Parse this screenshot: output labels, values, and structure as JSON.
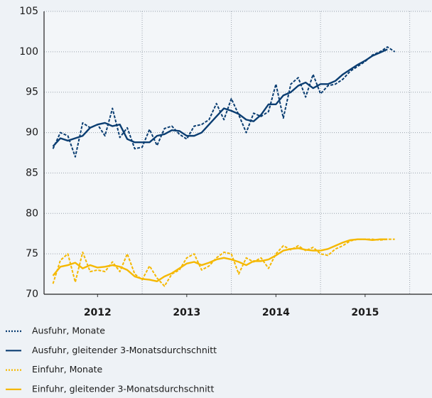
{
  "chart_data": {
    "type": "line",
    "x": [
      2012,
      2012.083,
      2012.167,
      2012.25,
      2012.333,
      2012.417,
      2012.5,
      2012.583,
      2012.667,
      2012.75,
      2012.833,
      2012.917,
      2013,
      2013.083,
      2013.167,
      2013.25,
      2013.333,
      2013.417,
      2013.5,
      2013.583,
      2013.667,
      2013.75,
      2013.833,
      2013.917,
      2014,
      2014.083,
      2014.167,
      2014.25,
      2014.333,
      2014.417,
      2014.5,
      2014.583,
      2014.667,
      2014.75,
      2014.833,
      2014.917,
      2015,
      2015.083,
      2015.167,
      2015.25,
      2015.333,
      2015.417,
      2015.5,
      2015.583,
      2015.667,
      2015.75,
      2015.833
    ],
    "series": [
      {
        "name": "Ausfuhr, Monate",
        "color": "#0b3e72",
        "dash": true,
        "values": [
          88.0,
          90.0,
          89.6,
          87.0,
          91.2,
          90.6,
          91.0,
          89.6,
          93.0,
          89.4,
          90.6,
          88.0,
          88.2,
          90.4,
          88.4,
          90.5,
          90.8,
          89.8,
          89.2,
          90.8,
          91.0,
          91.6,
          93.6,
          91.6,
          94.2,
          92.2,
          90.0,
          92.4,
          92.0,
          92.6,
          96.0,
          91.8,
          96.0,
          96.8,
          94.4,
          97.2,
          94.8,
          95.8,
          96.0,
          96.6,
          97.6,
          98.2,
          98.8,
          99.6,
          100.0,
          100.6,
          100.0
        ]
      },
      {
        "name": "Ausfuhr, gleitender 3-Monatsdurchschnitt",
        "color": "#0b3e72",
        "dash": false,
        "values": [
          88.3,
          89.3,
          89.0,
          89.3,
          89.6,
          90.6,
          91.0,
          91.2,
          90.8,
          91.0,
          89.2,
          88.8,
          88.8,
          88.8,
          89.6,
          89.8,
          90.3,
          90.2,
          89.6,
          89.6,
          90.0,
          91.0,
          92.0,
          93.0,
          92.7,
          92.3,
          91.6,
          91.4,
          92.2,
          93.5,
          93.5,
          94.6,
          95.0,
          95.8,
          96.2,
          95.5,
          96.0,
          96.0,
          96.4,
          97.2,
          97.8,
          98.4,
          98.9,
          99.5,
          99.9,
          100.3,
          null
        ]
      },
      {
        "name": "Einfuhr, Monate",
        "color": "#f5b800",
        "dash": true,
        "values": [
          71.3,
          74.2,
          75.0,
          71.5,
          75.2,
          72.8,
          73.0,
          72.8,
          74.0,
          72.8,
          75.0,
          72.5,
          71.8,
          73.5,
          72.0,
          71.0,
          72.5,
          73.0,
          74.5,
          75.0,
          73.0,
          73.5,
          74.5,
          75.2,
          75.0,
          72.5,
          74.5,
          74.0,
          74.5,
          73.2,
          75.0,
          76.0,
          75.5,
          76.0,
          75.4,
          75.8,
          75.0,
          74.8,
          75.6,
          76.0,
          76.6,
          76.8,
          76.8,
          76.8,
          76.7,
          76.8,
          76.8
        ]
      },
      {
        "name": "Einfuhr, gleitender 3-Monatsdurchschnitt",
        "color": "#f5b800",
        "dash": false,
        "values": [
          72.3,
          73.4,
          73.6,
          73.9,
          73.2,
          73.6,
          73.3,
          73.4,
          73.6,
          73.4,
          73.0,
          72.2,
          71.9,
          71.8,
          71.6,
          72.2,
          72.6,
          73.2,
          73.8,
          74.0,
          73.6,
          73.9,
          74.3,
          74.5,
          74.3,
          74.0,
          73.6,
          74.1,
          74.1,
          74.3,
          74.8,
          75.4,
          75.6,
          75.7,
          75.5,
          75.4,
          75.4,
          75.6,
          76.0,
          76.4,
          76.7,
          76.8,
          76.8,
          76.7,
          76.8,
          76.8,
          null
        ]
      }
    ],
    "xlim": [
      2011.9,
      2016.25
    ],
    "xticks": [
      {
        "value": 2012.5,
        "label": "2012"
      },
      {
        "value": 2013.5,
        "label": "2013"
      },
      {
        "value": 2014.5,
        "label": "2014"
      },
      {
        "value": 2015.5,
        "label": "2015"
      }
    ],
    "xgrid": [
      2013,
      2014,
      2015,
      2016
    ],
    "ylim": [
      70,
      105
    ],
    "yticks": [
      70,
      75,
      80,
      85,
      90,
      95,
      100,
      105
    ],
    "grid": true
  }
}
